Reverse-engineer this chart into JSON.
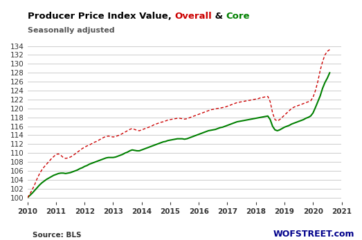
{
  "title_parts": [
    {
      "text": "Producer Price Index Value, ",
      "color": "#000000",
      "bold": true
    },
    {
      "text": "Overall",
      "color": "#cc0000",
      "bold": true
    },
    {
      "text": " & ",
      "color": "#000000",
      "bold": true
    },
    {
      "text": "Core",
      "color": "#008000",
      "bold": true
    }
  ],
  "subtitle": "Seasonally adjusted",
  "source_left": "Source: BLS",
  "source_right": "WOFSTREET.com",
  "ylim": [
    99,
    135
  ],
  "yticks": [
    100,
    102,
    104,
    106,
    108,
    110,
    112,
    114,
    116,
    118,
    120,
    122,
    124,
    126,
    128,
    130,
    132,
    134
  ],
  "overall_color": "#cc0000",
  "core_color": "#008000",
  "background_color": "#ffffff",
  "grid_color": "#cccccc",
  "xtick_years": [
    2010,
    2011,
    2012,
    2013,
    2014,
    2015,
    2016,
    2017,
    2018,
    2019,
    2020,
    2021
  ],
  "overall": [
    100.0,
    100.8,
    101.8,
    102.9,
    104.2,
    105.3,
    106.2,
    106.9,
    107.5,
    108.1,
    108.7,
    109.2,
    109.7,
    109.8,
    109.5,
    109.0,
    108.8,
    108.9,
    109.1,
    109.4,
    109.8,
    110.2,
    110.6,
    111.0,
    111.3,
    111.6,
    111.8,
    112.1,
    112.4,
    112.6,
    112.9,
    113.2,
    113.5,
    113.7,
    113.8,
    113.7,
    113.6,
    113.7,
    113.9,
    114.1,
    114.4,
    114.7,
    115.0,
    115.3,
    115.5,
    115.3,
    115.1,
    115.0,
    115.2,
    115.4,
    115.6,
    115.8,
    116.0,
    116.3,
    116.5,
    116.7,
    116.9,
    117.0,
    117.2,
    117.4,
    117.5,
    117.6,
    117.7,
    117.8,
    117.8,
    117.7,
    117.6,
    117.7,
    117.9,
    118.1,
    118.3,
    118.5,
    118.7,
    118.9,
    119.1,
    119.3,
    119.5,
    119.7,
    119.8,
    119.9,
    120.0,
    120.1,
    120.2,
    120.3,
    120.5,
    120.7,
    120.9,
    121.1,
    121.3,
    121.4,
    121.5,
    121.6,
    121.7,
    121.8,
    121.9,
    122.0,
    122.1,
    122.2,
    122.4,
    122.5,
    122.6,
    122.7,
    121.5,
    119.0,
    117.5,
    117.2,
    117.5,
    118.0,
    118.5,
    119.0,
    119.5,
    120.0,
    120.3,
    120.5,
    120.7,
    120.9,
    121.1,
    121.3,
    121.5,
    121.7,
    122.5,
    124.0,
    126.0,
    128.5,
    130.5,
    132.0,
    132.8,
    133.2
  ],
  "core": [
    100.0,
    100.5,
    101.0,
    101.6,
    102.2,
    102.8,
    103.3,
    103.7,
    104.1,
    104.4,
    104.7,
    105.0,
    105.2,
    105.4,
    105.5,
    105.5,
    105.4,
    105.5,
    105.6,
    105.8,
    106.0,
    106.2,
    106.5,
    106.7,
    107.0,
    107.2,
    107.5,
    107.7,
    107.9,
    108.1,
    108.3,
    108.5,
    108.7,
    108.9,
    109.0,
    109.0,
    109.0,
    109.1,
    109.3,
    109.5,
    109.7,
    110.0,
    110.2,
    110.5,
    110.7,
    110.6,
    110.5,
    110.5,
    110.7,
    110.9,
    111.1,
    111.3,
    111.5,
    111.7,
    111.9,
    112.1,
    112.3,
    112.5,
    112.6,
    112.8,
    112.9,
    113.0,
    113.1,
    113.2,
    113.2,
    113.2,
    113.1,
    113.2,
    113.4,
    113.6,
    113.8,
    114.0,
    114.2,
    114.4,
    114.6,
    114.8,
    115.0,
    115.1,
    115.2,
    115.3,
    115.5,
    115.7,
    115.8,
    116.0,
    116.2,
    116.4,
    116.6,
    116.8,
    117.0,
    117.1,
    117.2,
    117.3,
    117.4,
    117.5,
    117.6,
    117.7,
    117.8,
    117.9,
    118.0,
    118.1,
    118.2,
    118.3,
    117.5,
    116.0,
    115.2,
    115.0,
    115.2,
    115.5,
    115.8,
    116.0,
    116.2,
    116.5,
    116.7,
    116.9,
    117.1,
    117.3,
    117.5,
    117.8,
    118.0,
    118.3,
    119.0,
    120.2,
    121.5,
    122.8,
    124.5,
    125.8,
    126.8,
    128.0
  ]
}
